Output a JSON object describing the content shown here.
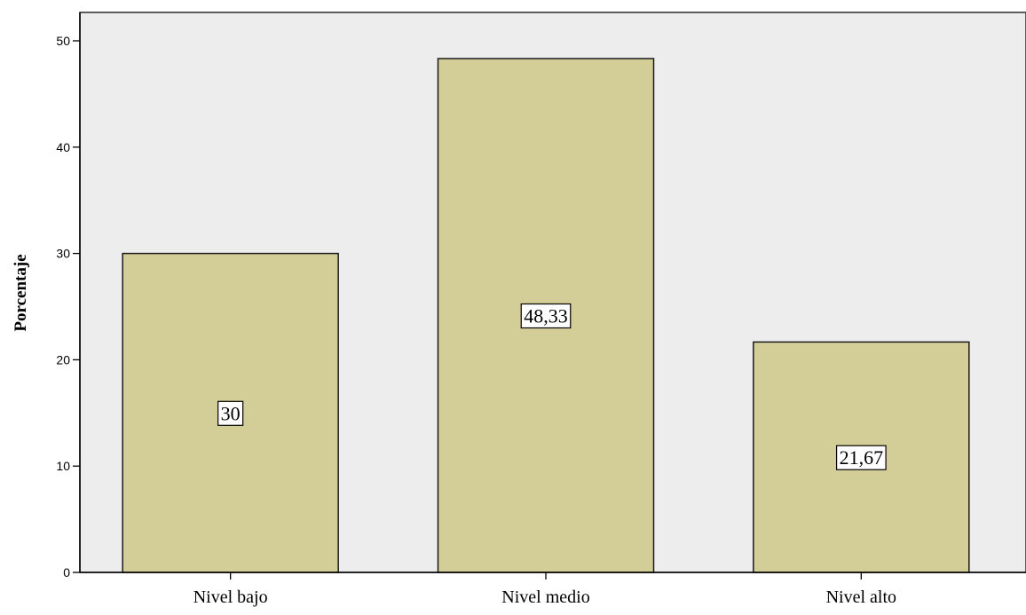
{
  "chart_data": {
    "type": "bar",
    "categories": [
      "Nivel bajo",
      "Nivel medio",
      "Nivel alto"
    ],
    "values": [
      30,
      48.33,
      21.67
    ],
    "data_labels": [
      "30",
      "48,33",
      "21,67"
    ],
    "title": "",
    "xlabel": "",
    "ylabel": "Porcentaje",
    "ylim": [
      0,
      52
    ],
    "yticks": [
      0,
      10,
      20,
      30,
      40,
      50
    ],
    "grid": false,
    "legend": "none"
  },
  "colors": {
    "plot_background": "#ededed",
    "bar_fill": "#d3ce98",
    "bar_stroke": "#1a1a1a",
    "label_box_fill": "#ffffff"
  }
}
